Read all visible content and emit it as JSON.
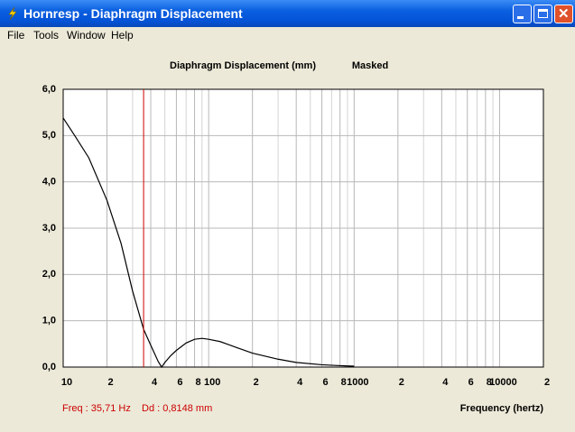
{
  "window": {
    "title": "Hornresp - Diaphragm Displacement",
    "menu": [
      "File",
      "Tools",
      "Window",
      "Help"
    ]
  },
  "chart_data": {
    "type": "line",
    "title": "Diaphragm Displacement (mm)",
    "subtitle": "Masked",
    "x_label": "Frequency (hertz)",
    "log_x": true,
    "grid": true,
    "xlim": [
      10,
      20000
    ],
    "xticks": [
      10,
      {
        "value": 20,
        "label": "2"
      },
      {
        "value": 40,
        "label": "4"
      },
      {
        "value": 60,
        "label": "6"
      },
      {
        "value": 80,
        "label": "8"
      },
      100,
      {
        "value": 200,
        "label": "2"
      },
      {
        "value": 400,
        "label": "4"
      },
      {
        "value": 600,
        "label": "6"
      },
      {
        "value": 800,
        "label": "8"
      },
      1000,
      {
        "value": 2000,
        "label": "2"
      },
      {
        "value": 4000,
        "label": "4"
      },
      {
        "value": 6000,
        "label": "6"
      },
      {
        "value": 8000,
        "label": "8"
      },
      10000,
      {
        "value": 20000,
        "label": "2"
      }
    ],
    "minor_xticks": [
      30,
      50,
      70,
      90,
      300,
      500,
      700,
      900,
      3000,
      5000,
      7000,
      9000
    ],
    "ylim": [
      0,
      6
    ],
    "yticks": [
      {
        "value": 0,
        "label": "0,0"
      },
      {
        "value": 1,
        "label": "1,0"
      },
      {
        "value": 2,
        "label": "2,0"
      },
      {
        "value": 3,
        "label": "3,0"
      },
      {
        "value": 4,
        "label": "4,0"
      },
      {
        "value": 5,
        "label": "5,0"
      },
      {
        "value": 6,
        "label": "6,0"
      }
    ],
    "x": [
      10,
      12,
      15,
      20,
      25,
      30,
      35.71,
      40,
      45,
      47.5,
      50,
      55,
      60,
      70,
      80,
      90,
      100,
      120,
      150,
      200,
      300,
      400,
      600,
      800,
      1000
    ],
    "series": [
      {
        "color": "#000000",
        "values": [
          5.38,
          5.0,
          4.52,
          3.6,
          2.67,
          1.64,
          0.8148,
          0.47,
          0.12,
          0,
          0.1,
          0.25,
          0.36,
          0.52,
          0.6,
          0.62,
          0.6,
          0.55,
          0.44,
          0.3,
          0.17,
          0.1,
          0.05,
          0.03,
          0.02
        ]
      }
    ],
    "cursor": {
      "x": 35.71,
      "color": "#cc0000",
      "freq_label": "Freq : 35,71 Hz",
      "dd_label": "Dd : 0,8148 mm"
    }
  }
}
